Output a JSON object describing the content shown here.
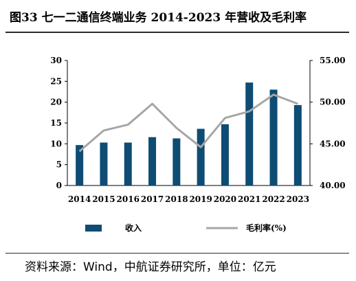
{
  "title": "图33  七一二通信终端业务 2014-2023 年营收及毛利率",
  "source": "资料来源：Wind，中航证券研究所，单位：亿元",
  "colors": {
    "bar": "#0e4c73",
    "line": "#a6a6a6",
    "axis": "#000000"
  },
  "chart_data": {
    "type": "bar",
    "categories": [
      "2014",
      "2015",
      "2016",
      "2017",
      "2018",
      "2019",
      "2020",
      "2021",
      "2022",
      "2023"
    ],
    "series": [
      {
        "name": "收入",
        "type": "bar",
        "axis": "left",
        "values": [
          9.7,
          10.3,
          10.3,
          11.6,
          11.3,
          13.6,
          14.7,
          24.7,
          23.0,
          19.3
        ]
      },
      {
        "name": "毛利率(%)",
        "type": "line",
        "axis": "right",
        "values": [
          44.1,
          46.6,
          47.3,
          49.8,
          46.9,
          44.6,
          48.1,
          48.9,
          50.9,
          49.8
        ]
      }
    ],
    "y_left": {
      "min": 0,
      "max": 30,
      "ticks": [
        "0",
        "5",
        "10",
        "15",
        "20",
        "25",
        "30"
      ]
    },
    "y_right": {
      "min": 40,
      "max": 55,
      "ticks": [
        "40.00",
        "45.00",
        "50.00",
        "55.00"
      ]
    },
    "legend_position": "bottom",
    "grid": false
  }
}
